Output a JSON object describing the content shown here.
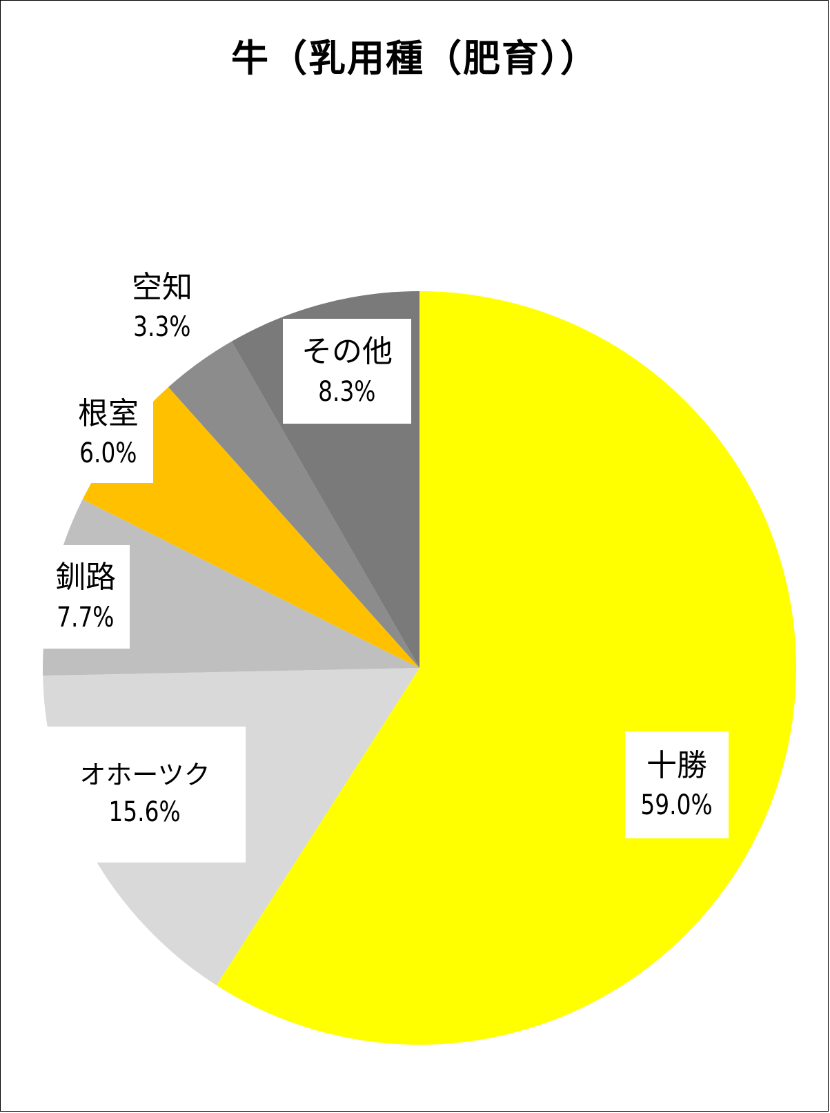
{
  "chart_data": {
    "type": "pie",
    "title": "牛（乳用種（肥育））",
    "start_angle_deg": 0,
    "direction": "clockwise",
    "slices": [
      {
        "name": "十勝",
        "value": 59.0,
        "label": "59.0%",
        "color": "#ffff00"
      },
      {
        "name": "オホーツク",
        "value": 15.6,
        "label": "15.6%",
        "color": "#d9d9d9"
      },
      {
        "name": "釧路",
        "value": 7.7,
        "label": "7.7%",
        "color": "#bfbfbf"
      },
      {
        "name": "根室",
        "value": 6.0,
        "label": "6.0%",
        "color": "#ffc000"
      },
      {
        "name": "空知",
        "value": 3.3,
        "label": "3.3%",
        "color": "#8c8c8c"
      },
      {
        "name": "その他",
        "value": 8.3,
        "label": "8.3%",
        "color": "#7a7a7a"
      }
    ]
  }
}
